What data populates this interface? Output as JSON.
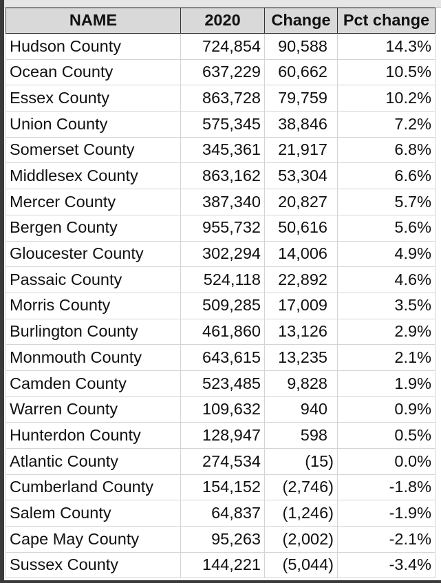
{
  "columns": [
    "NAME",
    "2020",
    "Change",
    "Pct change"
  ],
  "rows": [
    [
      "Hudson County",
      "724,854",
      "90,588",
      "14.3%"
    ],
    [
      "Ocean County",
      "637,229",
      "60,662",
      "10.5%"
    ],
    [
      "Essex County",
      "863,728",
      "79,759",
      "10.2%"
    ],
    [
      "Union County",
      "575,345",
      "38,846",
      "7.2%"
    ],
    [
      "Somerset County",
      "345,361",
      "21,917",
      "6.8%"
    ],
    [
      "Middlesex County",
      "863,162",
      "53,304",
      "6.6%"
    ],
    [
      "Mercer County",
      "387,340",
      "20,827",
      "5.7%"
    ],
    [
      "Bergen County",
      "955,732",
      "50,616",
      "5.6%"
    ],
    [
      "Gloucester County",
      "302,294",
      "14,006",
      "4.9%"
    ],
    [
      "Passaic County",
      "524,118",
      "22,892",
      "4.6%"
    ],
    [
      "Morris County",
      "509,285",
      "17,009",
      "3.5%"
    ],
    [
      "Burlington County",
      "461,860",
      "13,126",
      "2.9%"
    ],
    [
      "Monmouth County",
      "643,615",
      "13,235",
      "2.1%"
    ],
    [
      "Camden County",
      "523,485",
      "9,828",
      "1.9%"
    ],
    [
      "Warren County",
      "109,632",
      "940",
      "0.9%"
    ],
    [
      "Hunterdon County",
      "128,947",
      "598",
      "0.5%"
    ],
    [
      "Atlantic County",
      "274,534",
      "(15)",
      "0.0%"
    ],
    [
      "Cumberland County",
      "154,152",
      "(2,746)",
      "-1.8%"
    ],
    [
      "Salem County",
      "64,837",
      "(1,246)",
      "-1.9%"
    ],
    [
      "Cape May County",
      "95,263",
      "(2,002)",
      "-2.1%"
    ],
    [
      "Sussex County",
      "144,221",
      "(5,044)",
      "-3.4%"
    ]
  ]
}
